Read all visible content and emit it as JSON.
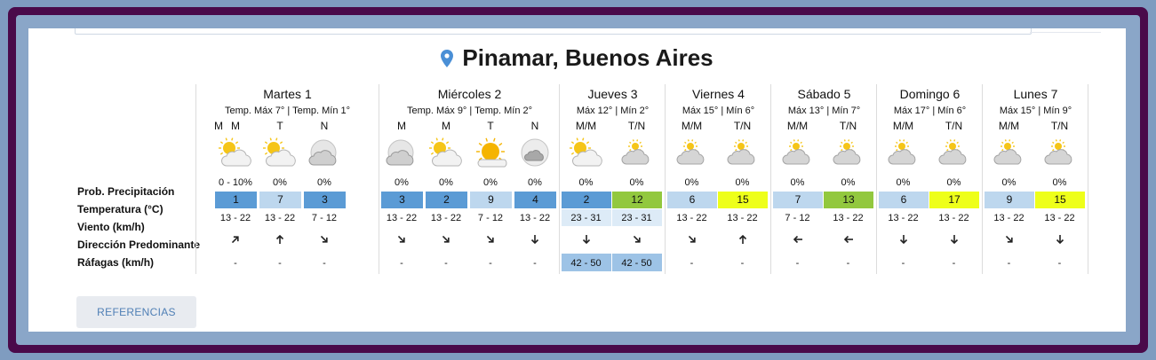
{
  "location": {
    "title": "Pinamar, Buenos Aires"
  },
  "labels": {
    "precip": "Prob. Precipitación",
    "temp": "Temperatura (°C)",
    "wind": "Viento (km/h)",
    "direction": "Dirección Predominante",
    "gusts": "Ráfagas (km/h)"
  },
  "lead_period": "M",
  "days": [
    {
      "name": "Martes 1",
      "temps": "Temp. Máx 7° | Temp. Mín 1°",
      "cols": [
        {
          "period": "M",
          "icon": "partly-cloudy-icon",
          "prob": "0 - 10%",
          "temp": "1",
          "tcolor": "#5b9bd5",
          "wind": "13 - 22",
          "dir": "north-east-arrow-icon",
          "rot": 45,
          "gust": "-"
        },
        {
          "period": "T",
          "icon": "partly-cloudy-icon",
          "prob": "0%",
          "temp": "7",
          "tcolor": "#bdd7ee",
          "wind": "13 - 22",
          "dir": "north-arrow-icon",
          "rot": 0,
          "gust": "-"
        },
        {
          "period": "N",
          "icon": "night-cloudy-icon",
          "prob": "0%",
          "temp": "3",
          "tcolor": "#5b9bd5",
          "wind": "7 - 12",
          "dir": "south-east-arrow-icon",
          "rot": 135,
          "gust": "-"
        }
      ]
    },
    {
      "name": "Miércoles 2",
      "temps": "Temp. Máx 9° | Temp. Mín 2°",
      "cols": [
        {
          "period": "M",
          "icon": "night-cloudy-icon",
          "prob": "0%",
          "temp": "3",
          "tcolor": "#5b9bd5",
          "wind": "13 - 22",
          "dir": "south-east-arrow-icon",
          "rot": 135,
          "gust": "-"
        },
        {
          "period": "M",
          "icon": "partly-cloudy-icon",
          "prob": "0%",
          "temp": "2",
          "tcolor": "#5b9bd5",
          "wind": "13 - 22",
          "dir": "south-east-arrow-icon",
          "rot": 135,
          "gust": "-"
        },
        {
          "period": "T",
          "icon": "sunny-cloud-icon",
          "prob": "0%",
          "temp": "9",
          "tcolor": "#bdd7ee",
          "wind": "7 - 12",
          "dir": "south-east-arrow-icon",
          "rot": 135,
          "gust": "-"
        },
        {
          "period": "N",
          "icon": "moon-cloud-icon",
          "prob": "0%",
          "temp": "4",
          "tcolor": "#5b9bd5",
          "wind": "13 - 22",
          "dir": "south-arrow-icon",
          "rot": 180,
          "gust": "-"
        }
      ]
    },
    {
      "name": "Jueves 3",
      "temps": "Máx 12° | Mín 2°",
      "cols": [
        {
          "period": "M/M",
          "icon": "partly-cloudy-icon",
          "prob": "0%",
          "temp": "2",
          "tcolor": "#5b9bd5",
          "wind": "23 - 31",
          "windbg": "#ddebf7",
          "dir": "south-arrow-icon",
          "rot": 180,
          "gust": "42 - 50",
          "gustbg": "#9dc3e6"
        },
        {
          "period": "T/N",
          "icon": "cloudy-icon",
          "prob": "0%",
          "temp": "12",
          "tcolor": "#92c83e",
          "wind": "23 - 31",
          "windbg": "#ddebf7",
          "dir": "south-east-arrow-icon",
          "rot": 135,
          "gust": "42 - 50",
          "gustbg": "#9dc3e6"
        }
      ]
    },
    {
      "name": "Viernes 4",
      "temps": "Máx 15° | Mín 6°",
      "cols": [
        {
          "period": "M/M",
          "icon": "cloudy-icon",
          "prob": "0%",
          "temp": "6",
          "tcolor": "#bdd7ee",
          "wind": "13 - 22",
          "dir": "south-east-arrow-icon",
          "rot": 135,
          "gust": "-"
        },
        {
          "period": "T/N",
          "icon": "cloudy-icon",
          "prob": "0%",
          "temp": "15",
          "tcolor": "#eeff1a",
          "wind": "13 - 22",
          "dir": "north-arrow-icon",
          "rot": 0,
          "gust": "-"
        }
      ]
    },
    {
      "name": "Sábado 5",
      "temps": "Máx 13° | Mín 7°",
      "cols": [
        {
          "period": "M/M",
          "icon": "cloudy-icon",
          "prob": "0%",
          "temp": "7",
          "tcolor": "#bdd7ee",
          "wind": "7 - 12",
          "dir": "west-arrow-icon",
          "rot": 270,
          "gust": "-"
        },
        {
          "period": "T/N",
          "icon": "cloudy-icon",
          "prob": "0%",
          "temp": "13",
          "tcolor": "#92c83e",
          "wind": "13 - 22",
          "dir": "west-arrow-icon",
          "rot": 270,
          "gust": "-"
        }
      ]
    },
    {
      "name": "Domingo 6",
      "temps": "Máx 17° | Mín 6°",
      "cols": [
        {
          "period": "M/M",
          "icon": "cloudy-icon",
          "prob": "0%",
          "temp": "6",
          "tcolor": "#bdd7ee",
          "wind": "13 - 22",
          "dir": "south-arrow-icon",
          "rot": 180,
          "gust": "-"
        },
        {
          "period": "T/N",
          "icon": "cloudy-icon",
          "prob": "0%",
          "temp": "17",
          "tcolor": "#eeff1a",
          "wind": "13 - 22",
          "dir": "south-arrow-icon",
          "rot": 180,
          "gust": "-"
        }
      ]
    },
    {
      "name": "Lunes 7",
      "temps": "Máx 15° | Mín 9°",
      "cols": [
        {
          "period": "M/M",
          "icon": "cloudy-icon",
          "prob": "0%",
          "temp": "9",
          "tcolor": "#bdd7ee",
          "wind": "13 - 22",
          "dir": "south-east-arrow-icon",
          "rot": 135,
          "gust": "-"
        },
        {
          "period": "T/N",
          "icon": "cloudy-icon",
          "prob": "0%",
          "temp": "15",
          "tcolor": "#eeff1a",
          "wind": "13 - 22",
          "dir": "south-arrow-icon",
          "rot": 180,
          "gust": "-"
        }
      ]
    }
  ],
  "references_button": "REFERENCIAS",
  "colors": {
    "accent": "#4f7fb5",
    "frame_purple": "#4a0a4a",
    "frame_blue": "#8aa6c8",
    "pin": "#4a8fd6"
  }
}
